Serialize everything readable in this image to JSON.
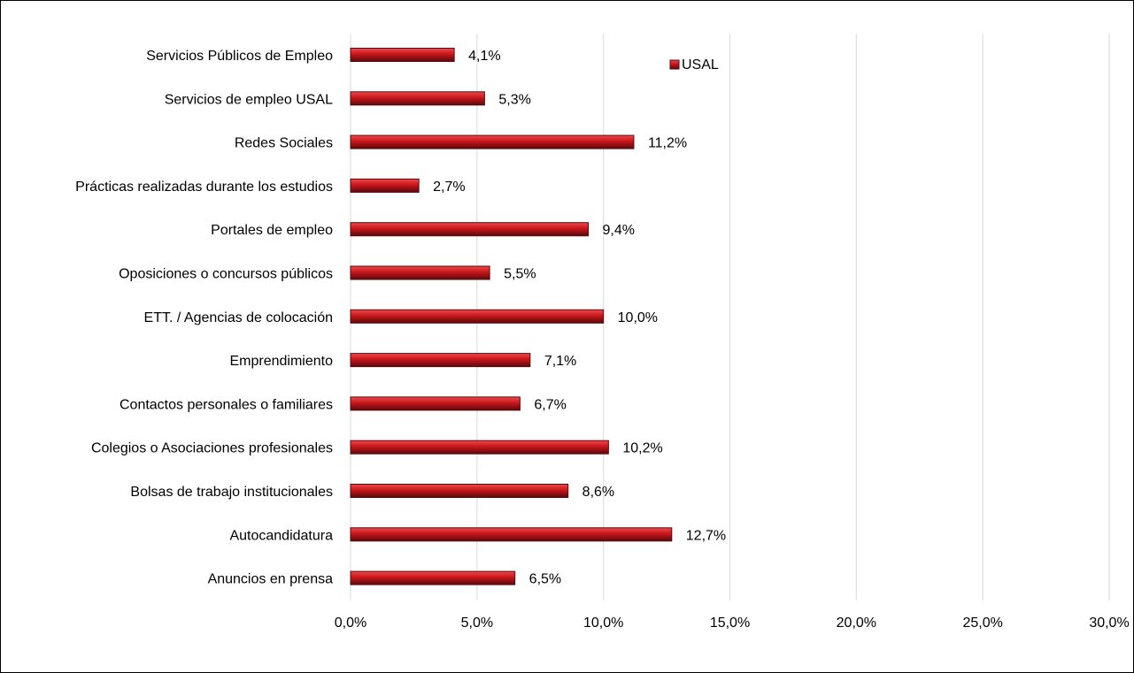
{
  "chart_data": {
    "type": "bar",
    "orientation": "horizontal",
    "categories": [
      "Servicios Públicos de Empleo",
      "Servicios de empleo USAL",
      "Redes Sociales",
      "Prácticas realizadas durante los estudios",
      "Portales de empleo",
      "Oposiciones o concursos públicos",
      "ETT. / Agencias de colocación",
      "Emprendimiento",
      "Contactos personales o familiares",
      "Colegios o Asociaciones profesionales",
      "Bolsas de trabajo institucionales",
      "Autocandidatura",
      "Anuncios en prensa"
    ],
    "series": [
      {
        "name": "USAL",
        "values": [
          4.1,
          5.3,
          11.2,
          2.7,
          9.4,
          5.5,
          10.0,
          7.1,
          6.7,
          10.2,
          8.6,
          12.7,
          6.5
        ],
        "data_labels": [
          "4,1%",
          "5,3%",
          "11,2%",
          "2,7%",
          "9,4%",
          "5,5%",
          "10,0%",
          "7,1%",
          "6,7%",
          "10,2%",
          "8,6%",
          "12,7%",
          "6,5%"
        ]
      }
    ],
    "x_ticks": [
      0,
      5,
      10,
      15,
      20,
      25,
      30
    ],
    "x_tick_labels": [
      "0,0%",
      "5,0%",
      "10,0%",
      "15,0%",
      "20,0%",
      "25,0%",
      "30,0%"
    ],
    "xlim": [
      0,
      30
    ],
    "xlabel": "",
    "ylabel": "",
    "title": "",
    "grid": "vertical",
    "legend": {
      "position": "top-right",
      "entries": [
        "USAL"
      ]
    },
    "colors": {
      "bar": "#c8161c",
      "bar_light": "#ee4a4a",
      "bar_dark": "#5a0a0c",
      "grid": "#d9d9d9"
    }
  }
}
